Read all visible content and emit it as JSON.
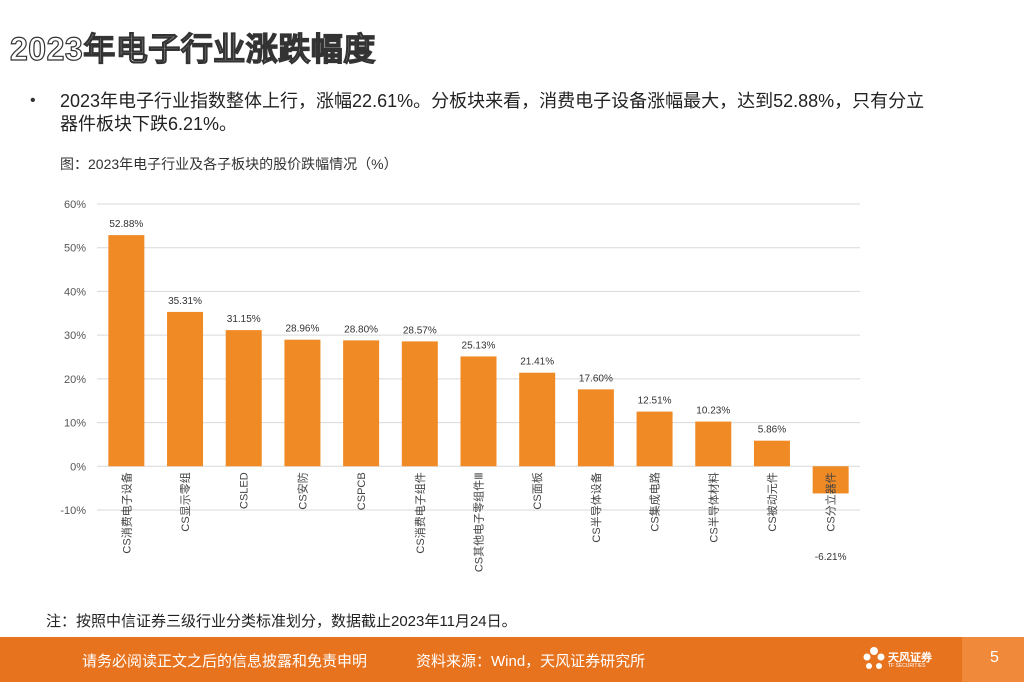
{
  "slide": {
    "title": "2023年电子行业涨跌幅度",
    "bullet_marker": "•",
    "bullet": "2023年电子行业指数整体上行，涨幅22.61%。分板块来看，消费电子设备涨幅最大，达到52.88%，只有分立器件板块下跌6.21%。",
    "caption": "图：2023年电子行业及各子板块的股价跌幅情况（%）",
    "note": "注：按照中信证券三级行业分类标准划分，数据截止2023年11月24日。"
  },
  "footer": {
    "disclaimer": "请务必阅读正文之后的信息披露和免责申明",
    "source": "资料来源：Wind，天风证券研究所",
    "logo_text": "天风证券",
    "logo_sub": "TF SECURITIES",
    "page_number": "5"
  },
  "colors": {
    "accent": "#e8731e",
    "bar": "#f08a24",
    "grid": "#d9d9d9"
  },
  "chart_data": {
    "type": "bar",
    "title": "2023年电子行业及各子板块的股价跌幅情况（%）",
    "categories": [
      "CS消费电子设备",
      "CS显示零组",
      "CSLED",
      "CS安防",
      "CSPCB",
      "CS消费电子组件",
      "CS其他电子零组件Ⅲ",
      "CS面板",
      "CS半导体设备",
      "CS集成电路",
      "CS半导体材料",
      "CS被动元件",
      "CS分立器件"
    ],
    "values": [
      52.88,
      35.31,
      31.15,
      28.96,
      28.8,
      28.57,
      25.13,
      21.41,
      17.6,
      12.51,
      10.23,
      5.86,
      -6.21
    ],
    "labels": [
      "52.88%",
      "35.31%",
      "31.15%",
      "28.96%",
      "28.80%",
      "28.57%",
      "25.13%",
      "21.41%",
      "17.60%",
      "12.51%",
      "10.23%",
      "5.86%",
      "-6.21%"
    ],
    "ylim": [
      -10,
      60
    ],
    "yticks": [
      -10,
      0,
      10,
      20,
      30,
      40,
      50,
      60
    ],
    "ytick_labels": [
      "-10%",
      "0%",
      "10%",
      "20%",
      "30%",
      "40%",
      "50%",
      "60%"
    ],
    "grid": true,
    "xlabel": "",
    "ylabel": ""
  }
}
